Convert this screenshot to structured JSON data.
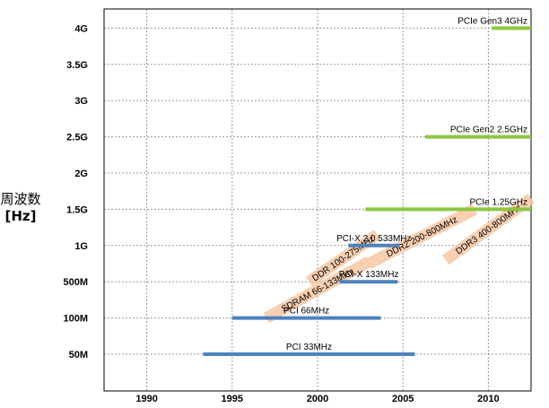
{
  "chart_data": {
    "type": "bar",
    "ylabel": "周波数",
    "ylabel_unit": "[Hz]",
    "x_ticks": [
      "1990",
      "1995",
      "2000",
      "2005",
      "2010"
    ],
    "xlim": [
      1987.5,
      2012.5
    ],
    "y_ticks": [
      "50M",
      "100M",
      "500M",
      "1G",
      "1.5G",
      "2G",
      "2.5G",
      "3G",
      "3.5G",
      "4G"
    ],
    "grid": true,
    "colors": {
      "pci": "#4f81bd",
      "pcie": "#8dc63f",
      "memory": "#f7c7a3"
    },
    "bars": [
      {
        "name": "PCI  33MHz",
        "group": "pci",
        "start": 1993.3,
        "end": 2005.7,
        "level": 0
      },
      {
        "name": "PCI   66MHz",
        "group": "pci",
        "start": 1995.0,
        "end": 2003.7,
        "level": 1
      },
      {
        "name": "PCI-X  133MHz",
        "group": "pci",
        "start": 2001.3,
        "end": 2004.7,
        "level": 2
      },
      {
        "name": "PCI-X  2.0 533MHz",
        "group": "pci",
        "start": 2001.8,
        "end": 2004.8,
        "level": 3
      },
      {
        "name": "PCIe   1.25GHz",
        "group": "pcie",
        "start": 2002.8,
        "end": 2012.5,
        "level": 4
      },
      {
        "name": "PCIe Gen2   2.5GHz",
        "group": "pcie",
        "start": 2006.3,
        "end": 2012.5,
        "level": 6
      },
      {
        "name": "PCIe Gen3   4GHz",
        "group": "pcie",
        "start": 2010.2,
        "end": 2012.5,
        "level": 9
      }
    ],
    "memory": [
      {
        "name": "SDRAM  66-133MHz",
        "start": 1997.0,
        "end": 2003.0,
        "level_start": 1.0,
        "level_end": 2.55
      },
      {
        "name": "DDR  100-275MHz",
        "start": 1999.5,
        "end": 2003.5,
        "level_start": 2.0,
        "level_end": 3.3
      },
      {
        "name": "DDR2  200-800MHz",
        "start": 2003.0,
        "end": 2009.2,
        "level_start": 2.5,
        "level_end": 4.0
      },
      {
        "name": "DDR3  400-800MHz",
        "start": 2007.5,
        "end": 2012.5,
        "level_start": 2.6,
        "level_end": 4.3
      }
    ]
  }
}
